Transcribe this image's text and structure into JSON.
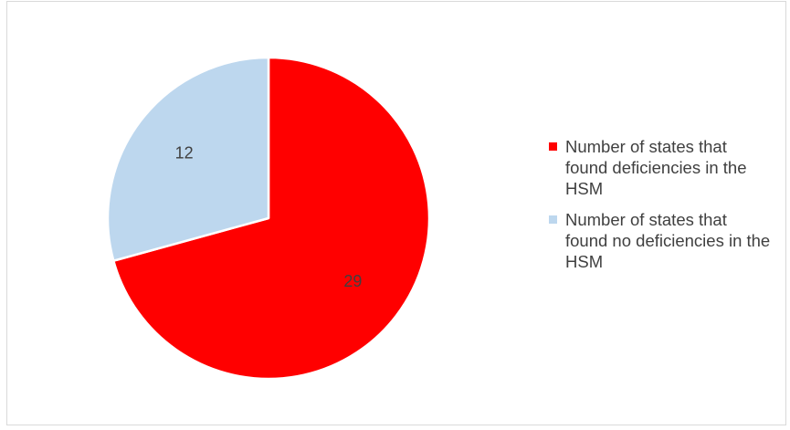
{
  "chart_data": {
    "type": "pie",
    "title": "",
    "categories": [
      "Number of states that found deficiencies in the HSM",
      "Number of states that found no deficiencies in the HSM"
    ],
    "values": [
      29,
      12
    ],
    "data_labels": [
      "29",
      "12"
    ],
    "colors": [
      "#ff0000",
      "#bdd7ee"
    ],
    "start_angle_deg": 0,
    "direction": "clockwise",
    "legend_position": "right",
    "grid": false
  }
}
